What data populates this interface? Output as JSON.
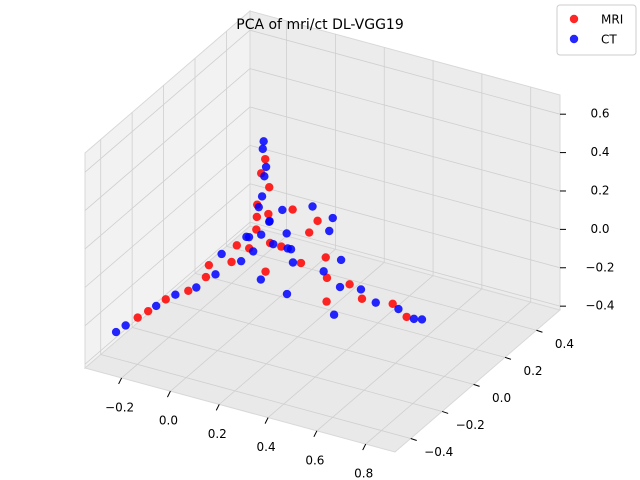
{
  "chart_data": {
    "type": "scatter3d",
    "title": "PCA of mri/ct DL-VGG19",
    "xlim": [
      -0.35,
      0.92
    ],
    "ylim": [
      -0.5,
      0.55
    ],
    "zlim": [
      -0.42,
      0.7
    ],
    "xticks": [
      {
        "value": -0.2,
        "label": "−0.2"
      },
      {
        "value": 0.0,
        "label": "0.0"
      },
      0.2,
      0.4,
      0.6,
      0.8
    ],
    "yticks": [
      {
        "value": -0.4,
        "label": "−0.4"
      },
      {
        "value": -0.2,
        "label": "−0.2"
      },
      {
        "value": 0.0,
        "label": "0.0"
      },
      0.2,
      0.4
    ],
    "zticks": [
      {
        "value": -0.4,
        "label": "−0.4"
      },
      {
        "value": -0.2,
        "label": "−0.2"
      },
      {
        "value": 0.0,
        "label": "0.0"
      },
      0.2,
      0.4,
      0.6
    ],
    "grid": true,
    "legend": "upper right",
    "series": [
      {
        "name": "MRI",
        "color": "#ff0000",
        "x": [
          0.06,
          0.05,
          0.07,
          0.04,
          0.06,
          0.03,
          0.08,
          0.02,
          0.1,
          -0.02,
          -0.08,
          -0.12,
          -0.18,
          -0.25,
          -0.22,
          0.2,
          0.3,
          0.38,
          0.45,
          0.55,
          0.62,
          0.15,
          0.12,
          0.05,
          0.0,
          0.1,
          -0.05,
          0.25,
          0.35,
          -0.1
        ],
        "y": [
          0.01,
          0.0,
          0.02,
          -0.01,
          0.03,
          0.0,
          0.01,
          -0.03,
          0.05,
          -0.08,
          -0.15,
          -0.2,
          -0.25,
          -0.32,
          -0.3,
          0.02,
          0.03,
          0.05,
          0.02,
          0.06,
          0.04,
          0.15,
          0.25,
          0.2,
          0.05,
          -0.05,
          0.0,
          0.1,
          -0.05,
          -0.1
        ],
        "z": [
          0.45,
          0.38,
          0.3,
          0.22,
          0.15,
          0.08,
          0.02,
          0.0,
          -0.02,
          -0.05,
          -0.1,
          -0.15,
          -0.18,
          -0.25,
          -0.22,
          -0.05,
          -0.1,
          -0.12,
          -0.15,
          -0.17,
          -0.2,
          0.0,
          -0.02,
          0.05,
          0.1,
          -0.08,
          -0.03,
          -0.06,
          -0.15,
          -0.08
        ]
      },
      {
        "name": "CT",
        "color": "#0000ff",
        "x": [
          0.06,
          0.05,
          0.07,
          0.05,
          0.06,
          0.04,
          0.07,
          0.05,
          0.08,
          0.03,
          0.12,
          0.0,
          -0.06,
          -0.1,
          -0.16,
          -0.2,
          -0.28,
          -0.3,
          0.18,
          0.28,
          0.36,
          0.42,
          0.5,
          0.58,
          0.65,
          0.67,
          0.2,
          0.15,
          0.08,
          0.02,
          0.1,
          -0.03,
          0.3,
          0.4,
          -0.08,
          0.22,
          0.0,
          0.09,
          0.14,
          0.04
        ],
        "y": [
          0.0,
          0.01,
          0.0,
          0.02,
          -0.01,
          0.0,
          0.02,
          0.0,
          0.03,
          -0.02,
          0.06,
          -0.05,
          -0.12,
          -0.18,
          -0.22,
          -0.28,
          -0.35,
          -0.38,
          0.0,
          0.04,
          0.02,
          0.06,
          0.03,
          0.05,
          0.04,
          0.06,
          0.2,
          0.3,
          0.28,
          0.1,
          -0.08,
          0.03,
          0.12,
          -0.08,
          -0.05,
          -0.1,
          0.0,
          0.1,
          0.05,
          0.15
        ],
        "z": [
          0.55,
          0.5,
          0.42,
          0.35,
          0.27,
          0.2,
          0.12,
          0.06,
          0.0,
          -0.02,
          -0.03,
          -0.06,
          -0.1,
          -0.14,
          -0.17,
          -0.2,
          -0.28,
          -0.3,
          -0.04,
          -0.08,
          -0.12,
          -0.14,
          -0.16,
          -0.18,
          -0.2,
          -0.21,
          -0.01,
          -0.03,
          0.02,
          0.05,
          -0.1,
          0.0,
          -0.07,
          -0.18,
          -0.05,
          -0.12,
          0.03,
          0.01,
          -0.02,
          0.08
        ]
      }
    ]
  }
}
